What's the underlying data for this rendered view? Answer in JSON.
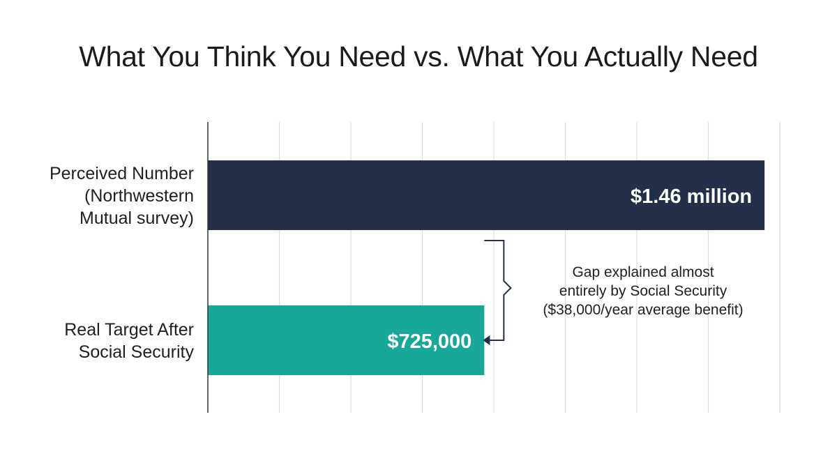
{
  "chart_data": {
    "type": "bar",
    "orientation": "horizontal",
    "title": "What You Think You Need vs. What You Actually Need",
    "xlabel": "",
    "ylabel": "",
    "xlim": [
      0,
      1500000
    ],
    "grid": true,
    "categories": [
      [
        "Perceived Number",
        "(Northwestern",
        "Mutual survey)"
      ],
      [
        "Real Target After",
        "Social Security"
      ]
    ],
    "values": [
      1460000,
      725000
    ],
    "data_labels": [
      "$1.46 million",
      "$725,000"
    ],
    "colors": [
      "#243049",
      "#17a899"
    ],
    "annotation": {
      "lines": [
        "Gap explained almost",
        "entirely by Social Security",
        "($38,000/year average benefit)"
      ],
      "from_value": 725000,
      "to_value": 1460000
    }
  }
}
